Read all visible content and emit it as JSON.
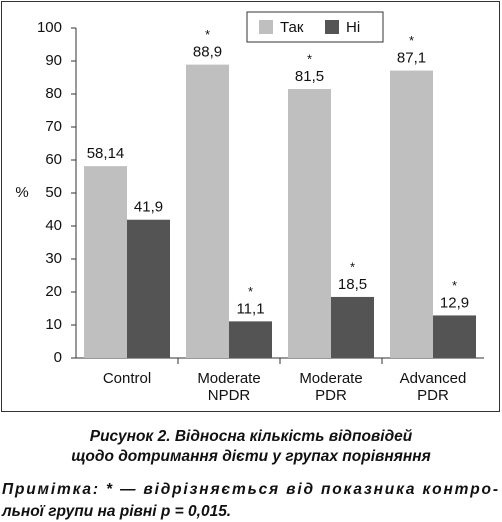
{
  "chart_data": {
    "type": "bar",
    "ylabel": "%",
    "categories": [
      [
        "Control"
      ],
      [
        "Moderate",
        "NPDR"
      ],
      [
        "Moderate",
        "PDR"
      ],
      [
        "Advanced",
        "PDR"
      ]
    ],
    "series": [
      {
        "name": "Так",
        "color": "#bfbfbf",
        "values": [
          58.14,
          88.9,
          81.5,
          87.1
        ],
        "value_labels": [
          "58,14",
          "88,9",
          "81,5",
          "87,1"
        ],
        "significance": [
          null,
          "*",
          "*",
          "*"
        ]
      },
      {
        "name": "Ні",
        "color": "#545454",
        "values": [
          41.9,
          11.1,
          18.5,
          12.9
        ],
        "value_labels": [
          "41,9",
          "11,1",
          "18,5",
          "12,9"
        ],
        "significance": [
          null,
          "*",
          "*",
          "*"
        ]
      }
    ],
    "ylim": [
      0,
      100
    ],
    "yticks": [
      0,
      10,
      20,
      30,
      40,
      50,
      60,
      70,
      80,
      90,
      100
    ],
    "legend": "upper right",
    "caption": [
      "Рисунок 2.  Відносна кількість відповідей",
      "щодо дотримання дієти у групах порівняння"
    ],
    "note": [
      "Примітка: * — відрізняється від показника контро-",
      "льної групи на рівні p = 0,015."
    ]
  }
}
